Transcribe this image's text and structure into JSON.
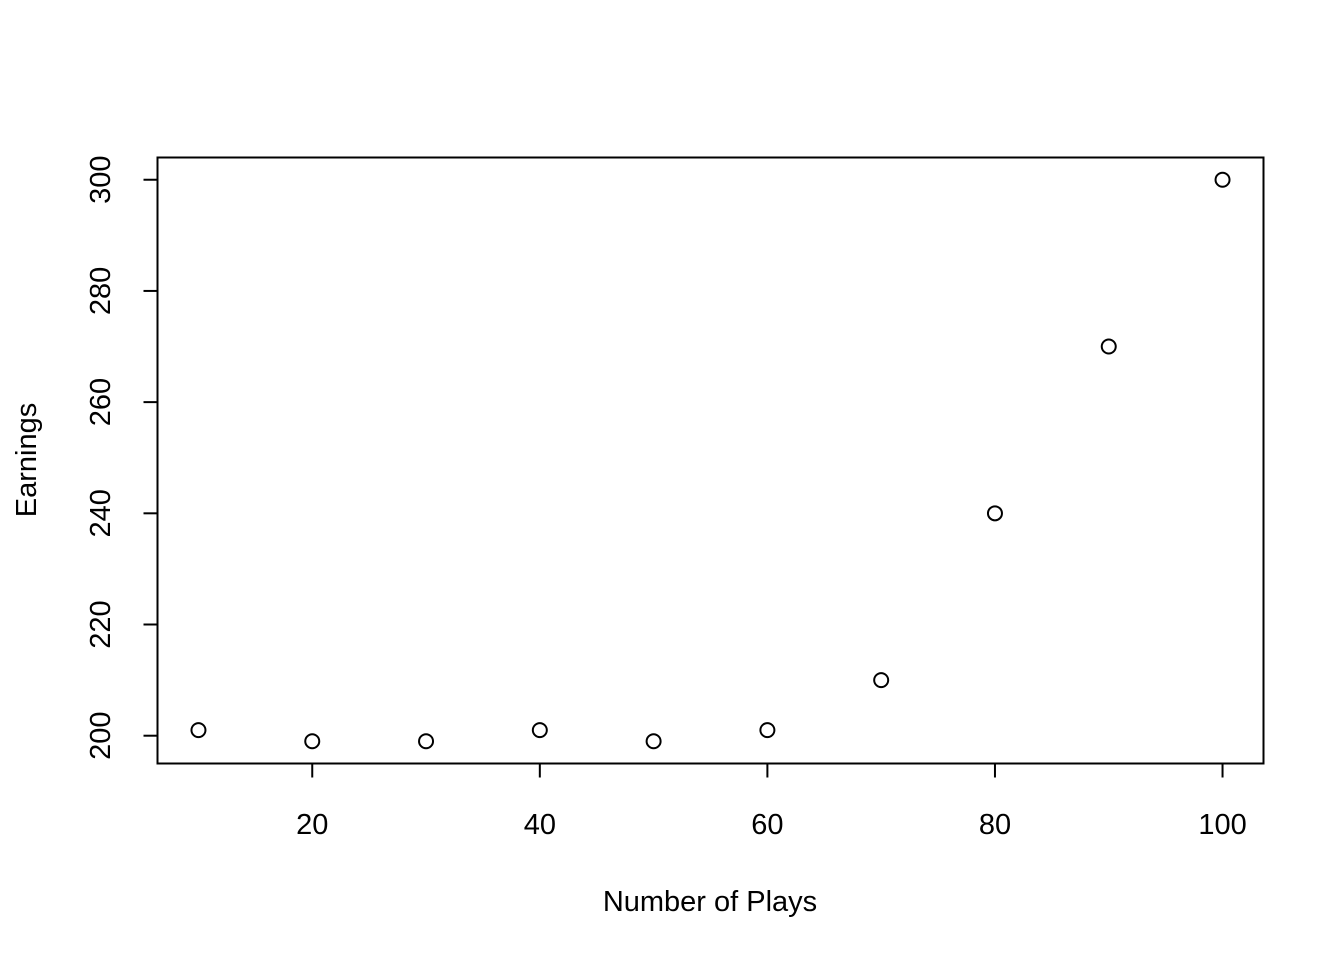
{
  "chart_data": {
    "type": "scatter",
    "title": "",
    "xlabel": "Number of Plays",
    "ylabel": "Earnings",
    "x": [
      10,
      20,
      30,
      40,
      50,
      60,
      70,
      80,
      90,
      100
    ],
    "y": [
      201,
      199,
      199,
      201,
      199,
      201,
      210,
      240,
      270,
      300
    ],
    "xlim": [
      6.4,
      103.6
    ],
    "ylim": [
      195.0,
      304.0
    ],
    "xticks": [
      20,
      40,
      60,
      80,
      100
    ],
    "yticks": [
      200,
      220,
      240,
      260,
      280,
      300
    ],
    "marker": "open-circle",
    "grid": false,
    "legend": "none",
    "colors": {
      "point_stroke": "#000000",
      "axis": "#000000",
      "background": "#ffffff"
    }
  }
}
